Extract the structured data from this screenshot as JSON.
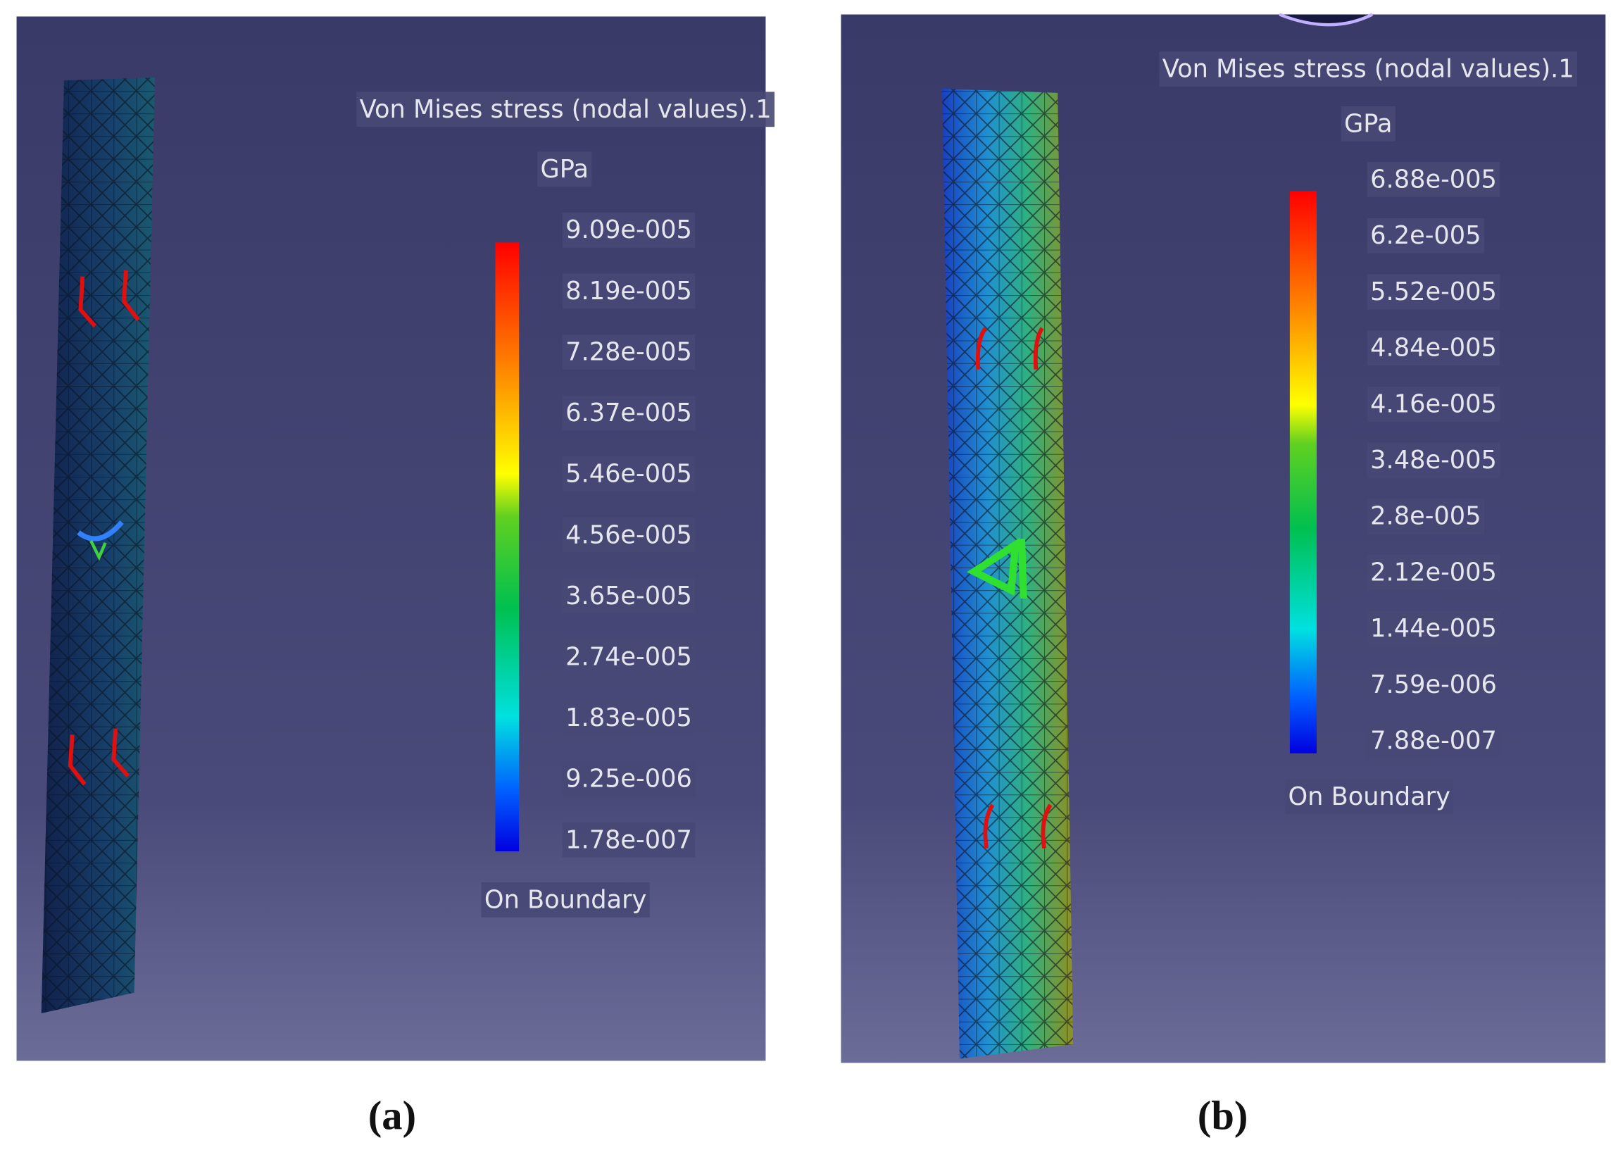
{
  "panels": [
    {
      "title": "Von Mises stress (nodal values).1",
      "unit": "GPa",
      "legend_labels": [
        "9.09e-005",
        "8.19e-005",
        "7.28e-005",
        "6.37e-005",
        "5.46e-005",
        "4.56e-005",
        "3.65e-005",
        "2.74e-005",
        "1.83e-005",
        "9.25e-006",
        "1.78e-007"
      ],
      "footer": "On Boundary",
      "caption": "(a)"
    },
    {
      "title": "Von Mises stress (nodal values).1",
      "unit": "GPa",
      "legend_labels": [
        "6.88e-005",
        "6.2e-005",
        "5.52e-005",
        "4.84e-005",
        "4.16e-005",
        "3.48e-005",
        "2.8e-005",
        "2.12e-005",
        "1.44e-005",
        "7.59e-006",
        "7.88e-007"
      ],
      "footer": "On Boundary",
      "caption": "(b)"
    }
  ]
}
